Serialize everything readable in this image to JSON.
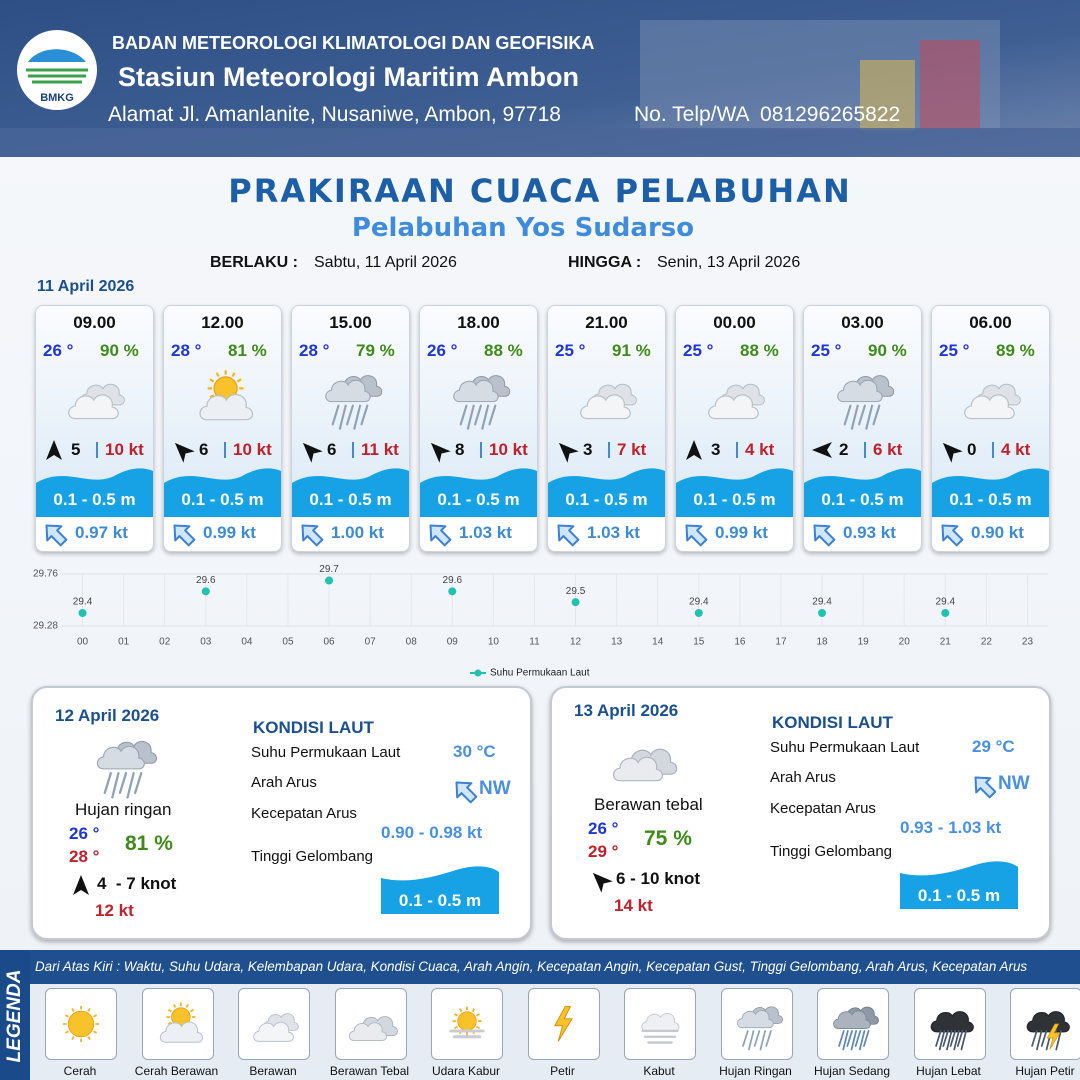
{
  "header": {
    "logo": "BMKG",
    "agency": "BADAN METEOROLOGI KLIMATOLOGI DAN GEOFISIKA",
    "station": "Stasiun Meteorologi Maritim Ambon",
    "address": "Alamat Jl. Amanlanite, Nusaniwe, Ambon, 97718",
    "phone": "No. Telp/WA  081296265822"
  },
  "title": "PRAKIRAAN CUACA PELABUHAN",
  "subtitle": "Pelabuhan Yos Sudarso",
  "validity": {
    "from_label": "BERLAKU :",
    "from": "Sabtu, 11 April 2026",
    "to_label": "HINGGA :",
    "to": "Senin, 13 April 2026"
  },
  "day1": {
    "date": "11 April 2026",
    "slots": [
      {
        "time": "09.00",
        "temp": "26 °",
        "humidity": "90 %",
        "icon": "berawan",
        "wind_dir": "N",
        "wind": "5",
        "gust": "10 kt",
        "wave": "0.1 - 0.5 m",
        "current_dir": "NW",
        "current": "0.97 kt"
      },
      {
        "time": "12.00",
        "temp": "28 °",
        "humidity": "81 %",
        "icon": "cerah-berawan",
        "wind_dir": "NW",
        "wind": "6",
        "gust": "10 kt",
        "wave": "0.1 - 0.5 m",
        "current_dir": "NW",
        "current": "0.99 kt"
      },
      {
        "time": "15.00",
        "temp": "28 °",
        "humidity": "79 %",
        "icon": "hujan-ringan",
        "wind_dir": "NW",
        "wind": "6",
        "gust": "11 kt",
        "wave": "0.1 - 0.5 m",
        "current_dir": "NW",
        "current": "1.00 kt"
      },
      {
        "time": "18.00",
        "temp": "26 °",
        "humidity": "88 %",
        "icon": "hujan-ringan",
        "wind_dir": "NW",
        "wind": "8",
        "gust": "10 kt",
        "wave": "0.1 - 0.5 m",
        "current_dir": "NW",
        "current": "1.03 kt"
      },
      {
        "time": "21.00",
        "temp": "25 °",
        "humidity": "91 %",
        "icon": "berawan",
        "wind_dir": "NW",
        "wind": "3",
        "gust": "7 kt",
        "wave": "0.1 - 0.5 m",
        "current_dir": "NW",
        "current": "1.03 kt"
      },
      {
        "time": "00.00",
        "temp": "25 °",
        "humidity": "88 %",
        "icon": "berawan",
        "wind_dir": "N",
        "wind": "3",
        "gust": "4 kt",
        "wave": "0.1 - 0.5 m",
        "current_dir": "NW",
        "current": "0.99 kt"
      },
      {
        "time": "03.00",
        "temp": "25 °",
        "humidity": "90 %",
        "icon": "hujan-ringan",
        "wind_dir": "W",
        "wind": "2",
        "gust": "6 kt",
        "wave": "0.1 - 0.5 m",
        "current_dir": "NW",
        "current": "0.93 kt"
      },
      {
        "time": "06.00",
        "temp": "25 °",
        "humidity": "89 %",
        "icon": "berawan",
        "wind_dir": "NW",
        "wind": "0",
        "gust": "4 kt",
        "wave": "0.1 - 0.5 m",
        "current_dir": "NW",
        "current": "0.90 kt"
      }
    ]
  },
  "chart_data": {
    "type": "scatter",
    "x": [
      0,
      3,
      6,
      9,
      12,
      15,
      18,
      21
    ],
    "series": [
      {
        "name": "Suhu Permukaan Laut",
        "color": "#21c2b0",
        "values": [
          29.4,
          29.6,
          29.7,
          29.6,
          29.5,
          29.4,
          29.4,
          29.4
        ]
      }
    ],
    "xlim": [
      -0.5,
      23.5
    ],
    "ylim": [
      29.28,
      29.76
    ],
    "yticks": [
      29.28,
      29.76
    ],
    "xticks": [
      {
        "value": 0,
        "label": "00"
      },
      {
        "value": 1,
        "label": "01"
      },
      {
        "value": 2,
        "label": "02"
      },
      {
        "value": 3,
        "label": "03"
      },
      {
        "value": 4,
        "label": "04"
      },
      {
        "value": 5,
        "label": "05"
      },
      {
        "value": 6,
        "label": "06"
      },
      {
        "value": 7,
        "label": "07"
      },
      {
        "value": 8,
        "label": "08"
      },
      {
        "value": 9,
        "label": "09"
      },
      10,
      11,
      12,
      13,
      14,
      15,
      16,
      17,
      18,
      19,
      20,
      21,
      22,
      23
    ],
    "grid": true,
    "legend": "bottom"
  },
  "day2": {
    "date": "12 April 2026",
    "icon": "hujan-ringan",
    "condition": "Hujan ringan",
    "temp_min": "26 °",
    "temp_max": "28 °",
    "humidity": "81 %",
    "wind_dir": "N",
    "wind": "4  - 7 knot",
    "gust": "12 kt",
    "sea": {
      "heading": "KONDISI LAUT",
      "sst_label": "Suhu Permukaan Laut",
      "sst": "30 °C",
      "current_dir_label": "Arah Arus",
      "current_dir": "NW",
      "current_speed_label": "Kecepatan Arus",
      "current_speed": "0.90 - 0.98 kt",
      "wave_label": "Tinggi Gelombang",
      "wave": "0.1 - 0.5 m"
    }
  },
  "day3": {
    "date": "13 April 2026",
    "icon": "berawan-tebal",
    "condition": "Berawan tebal",
    "temp_min": "26 °",
    "temp_max": "29 °",
    "humidity": "75 %",
    "wind_dir": "NW",
    "wind": "6 - 10 knot",
    "gust": "14 kt",
    "sea": {
      "heading": "KONDISI LAUT",
      "sst_label": "Suhu Permukaan Laut",
      "sst": "29 °C",
      "current_dir_label": "Arah Arus",
      "current_dir": "NW",
      "current_speed_label": "Kecepatan Arus",
      "current_speed": "0.93 - 1.03 kt",
      "wave_label": "Tinggi Gelombang",
      "wave": "0.1 - 0.5 m"
    }
  },
  "legend": {
    "title": "LEGENDA",
    "note": "Dari Atas Kiri : Waktu, Suhu Udara, Kelembapan Udara, Kondisi Cuaca, Arah Angin, Kecepatan Angin, Kecepatan Gust, Tinggi Gelombang, Arah Arus, Kecepatan Arus",
    "items": [
      {
        "icon": "cerah",
        "label": "Cerah"
      },
      {
        "icon": "cerah-berawan",
        "label": "Cerah Berawan"
      },
      {
        "icon": "berawan",
        "label": "Berawan"
      },
      {
        "icon": "berawan-tebal",
        "label": "Berawan Tebal"
      },
      {
        "icon": "udara-kabur",
        "label": "Udara Kabur"
      },
      {
        "icon": "petir",
        "label": "Petir"
      },
      {
        "icon": "kabut",
        "label": "Kabut"
      },
      {
        "icon": "hujan-ringan",
        "label": "Hujan Ringan"
      },
      {
        "icon": "hujan-sedang",
        "label": "Hujan Sedang"
      },
      {
        "icon": "hujan-lebat",
        "label": "Hujan Lebat"
      },
      {
        "icon": "hujan-petir",
        "label": "Hujan Petir"
      }
    ]
  }
}
